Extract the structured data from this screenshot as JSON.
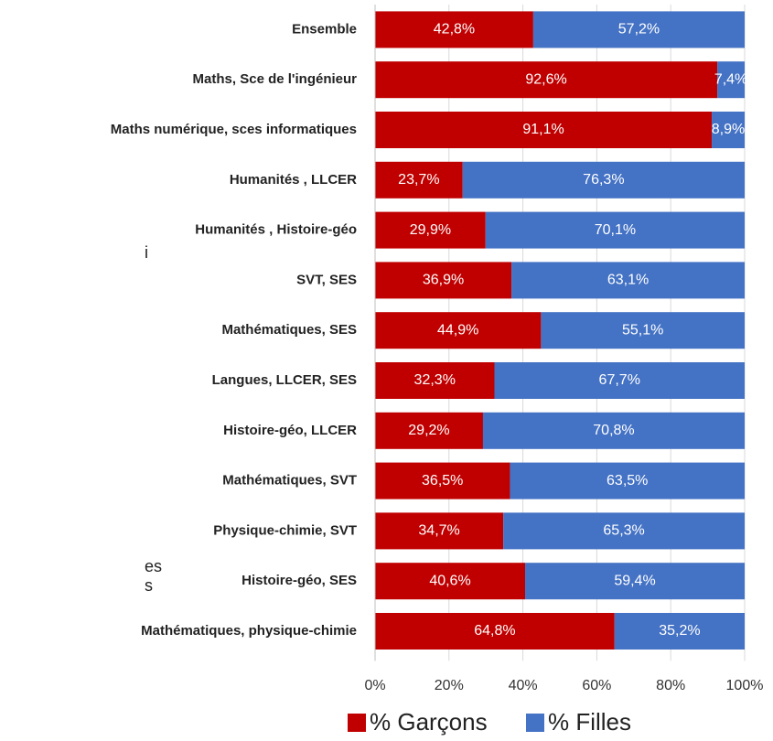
{
  "chart_data": {
    "type": "stacked_barh",
    "categories": [
      "Ensemble",
      "Maths, Sce de l'ingénieur",
      "Maths numérique, sces informatiques",
      "Humanités , LLCER",
      "Humanités , Histoire-géo",
      "SVT, SES",
      "Mathématiques, SES",
      "Langues, LLCER, SES",
      "Histoire-géo, LLCER",
      "Mathématiques, SVT",
      "Physique-chimie, SVT",
      "Histoire-géo, SES",
      "Mathématiques, physique-chimie"
    ],
    "series": [
      {
        "name": "% Garçons",
        "color": "#c00000",
        "values": [
          42.8,
          92.6,
          91.1,
          23.7,
          29.9,
          36.9,
          44.9,
          32.3,
          29.2,
          36.5,
          34.7,
          40.6,
          64.8
        ],
        "value_labels": [
          "42,8%",
          "92,6%",
          "91,1%",
          "23,7%",
          "29,9%",
          "36,9%",
          "44,9%",
          "32,3%",
          "29,2%",
          "36,5%",
          "34,7%",
          "40,6%",
          "64,8%"
        ]
      },
      {
        "name": "% Filles",
        "color": "#4472c4",
        "values": [
          57.2,
          7.4,
          8.9,
          76.3,
          70.1,
          63.1,
          55.1,
          67.7,
          70.8,
          63.5,
          65.3,
          59.4,
          35.2
        ],
        "value_labels": [
          "57,2%",
          "7,4%",
          "8,9%",
          "76,3%",
          "70,1%",
          "63,1%",
          "55,1%",
          "67,7%",
          "70,8%",
          "63,5%",
          "65,3%",
          "59,4%",
          "35,2%"
        ]
      }
    ],
    "xlim": [
      0,
      100
    ],
    "xticks": [
      {
        "value": 0,
        "label": "0%"
      },
      {
        "value": 20,
        "label": "20%"
      },
      {
        "value": 40,
        "label": "40%"
      },
      {
        "value": 60,
        "label": "60%"
      },
      {
        "value": 80,
        "label": "80%"
      },
      {
        "value": 100,
        "label": "100%"
      }
    ],
    "grid": true,
    "legend": "bottom",
    "annotations": [
      "i",
      "es",
      "s"
    ]
  }
}
